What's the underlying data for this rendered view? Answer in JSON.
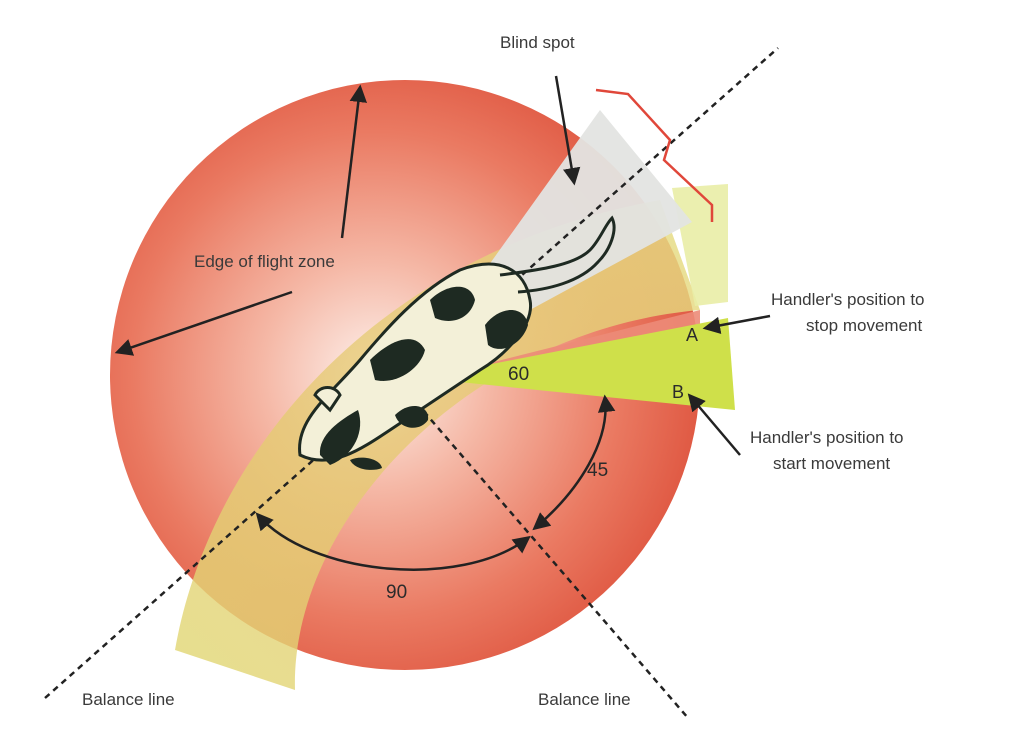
{
  "labels": {
    "blind_spot": "Blind spot",
    "edge_of_flight_zone": "Edge of flight zone",
    "stop_line1": "Handler's position to",
    "stop_line2": "stop movement",
    "start_line1": "Handler's position to",
    "start_line2": "start movement",
    "point_a": "A",
    "point_b": "B",
    "angle_60": "60",
    "angle_45": "45",
    "angle_90": "90",
    "balance_line_left": "Balance line",
    "balance_line_right": "Balance line"
  },
  "colors": {
    "flight_zone_center": "#fbe6de",
    "flight_zone_edge": "#e05a44",
    "pressure_band": "#e8e07a",
    "blind_spot": "#e3e4e2",
    "handler_zone": "#cfe04a",
    "bracket": "#e0473a",
    "arrow": "#222222",
    "cow": "#1e2a22"
  }
}
